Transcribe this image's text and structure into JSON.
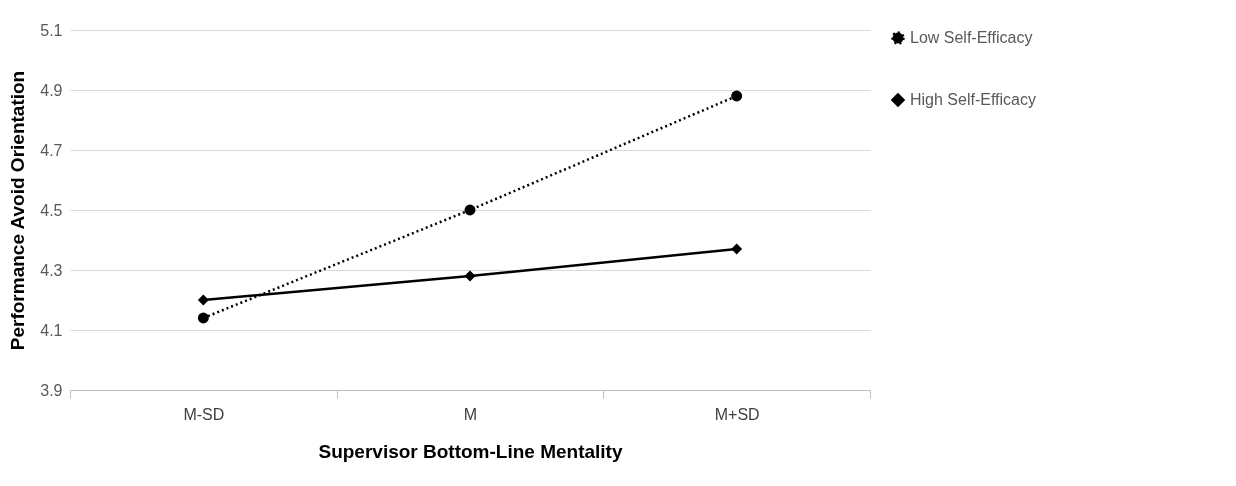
{
  "chart_data": {
    "type": "line",
    "xlabel": "Supervisor Bottom-Line Mentality",
    "ylabel": "Performance Avoid Orientation",
    "categories": [
      "M-SD",
      "M",
      "M+SD"
    ],
    "series": [
      {
        "name": "Low Self-Efficacy",
        "color": "#000000",
        "values": [
          4.14,
          4.5,
          4.88
        ],
        "marker": "circle",
        "line_style": "dotted"
      },
      {
        "name": "High Self-Efficacy",
        "color": "#000000",
        "values": [
          4.2,
          4.28,
          4.37
        ],
        "marker": "diamond",
        "line_style": "solid"
      }
    ],
    "ylim": [
      3.9,
      5.1
    ],
    "yticks": [
      3.9,
      4.1,
      4.3,
      4.5,
      4.7,
      4.9,
      5.1
    ],
    "grid": "y",
    "legend": "right"
  }
}
